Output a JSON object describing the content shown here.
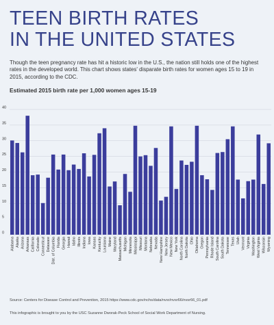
{
  "header": {
    "title_line1": "TEEN BIRTH RATES",
    "title_line2": "IN THE UNITED STATES",
    "intro": "Though the teen pregnancy rate has hit a historic low in the U.S., the nation still holds one of the highest rates in the developed world. This chart shows states' disparate birth rates for women ages 15 to 19 in 2015, according to the CDC.",
    "subtitle": "Estimated 2015 birth rate per 1,000 women ages 15-19"
  },
  "footer": {
    "source": "Source: Centers for Disease Control and Prevention, 2015 https://www.cdc.gov/nchs/data/nvsr/nvsr66/nvsr66_01.pdf",
    "credit": "This infographic is brought to you by the USC Suzanne Dworak-Peck School of Social Work Department of Nursing."
  },
  "colors": {
    "bar": "#3b3d9c",
    "grid": "#c9ced8",
    "title": "#36428a",
    "text": "#333333",
    "background": "#eef2f7"
  },
  "chart_data": {
    "type": "bar",
    "title": "Estimated 2015 birth rate per 1,000 women ages 15-19",
    "xlabel": "",
    "ylabel": "",
    "ylim": [
      0,
      40
    ],
    "yticks": [
      0,
      5,
      10,
      15,
      20,
      25,
      30,
      35,
      40
    ],
    "grid": true,
    "legend": "none",
    "categories": [
      "Alabama",
      "Alaska",
      "Arizona",
      "Arkansas",
      "California",
      "Colorado",
      "Connecticut",
      "Delaware",
      "Dist. of Columbia",
      "Florida",
      "Georgia",
      "Hawaii",
      "Idaho",
      "Illinois",
      "Indiana",
      "Iowa",
      "Kansas",
      "Kentucky",
      "Louisiana",
      "Maine",
      "Maryland",
      "Massachusetts",
      "Michigan",
      "Minnesota",
      "Mississippi",
      "Missouri",
      "Montana",
      "Nebraska",
      "Nevada",
      "New Hampshire",
      "New Jersey",
      "New Mexico",
      "New York",
      "North Carolina",
      "North Dakota",
      "Ohio",
      "Oklahoma",
      "Oregon",
      "Pennsylvania",
      "Rhode Island",
      "South Carolina",
      "South Dakota",
      "Tennessee",
      "Texas",
      "Utah",
      "Vermont",
      "Virginia",
      "Washington",
      "West Virginia",
      "Wisconsin",
      "Wyoming"
    ],
    "values": [
      30.1,
      29.3,
      26.3,
      38.0,
      19.0,
      19.2,
      10.1,
      18.2,
      25.6,
      20.8,
      25.6,
      20.6,
      22.4,
      21.0,
      26.0,
      18.6,
      25.5,
      32.4,
      34.0,
      15.4,
      17.0,
      9.4,
      19.4,
      13.7,
      34.8,
      25.0,
      25.4,
      22.0,
      27.7,
      10.9,
      12.1,
      34.6,
      14.6,
      23.7,
      22.3,
      23.3,
      34.8,
      19.0,
      17.7,
      14.3,
      26.1,
      26.4,
      30.5,
      34.6,
      17.6,
      11.6,
      17.1,
      17.6,
      32.0,
      16.2,
      29.2
    ]
  }
}
